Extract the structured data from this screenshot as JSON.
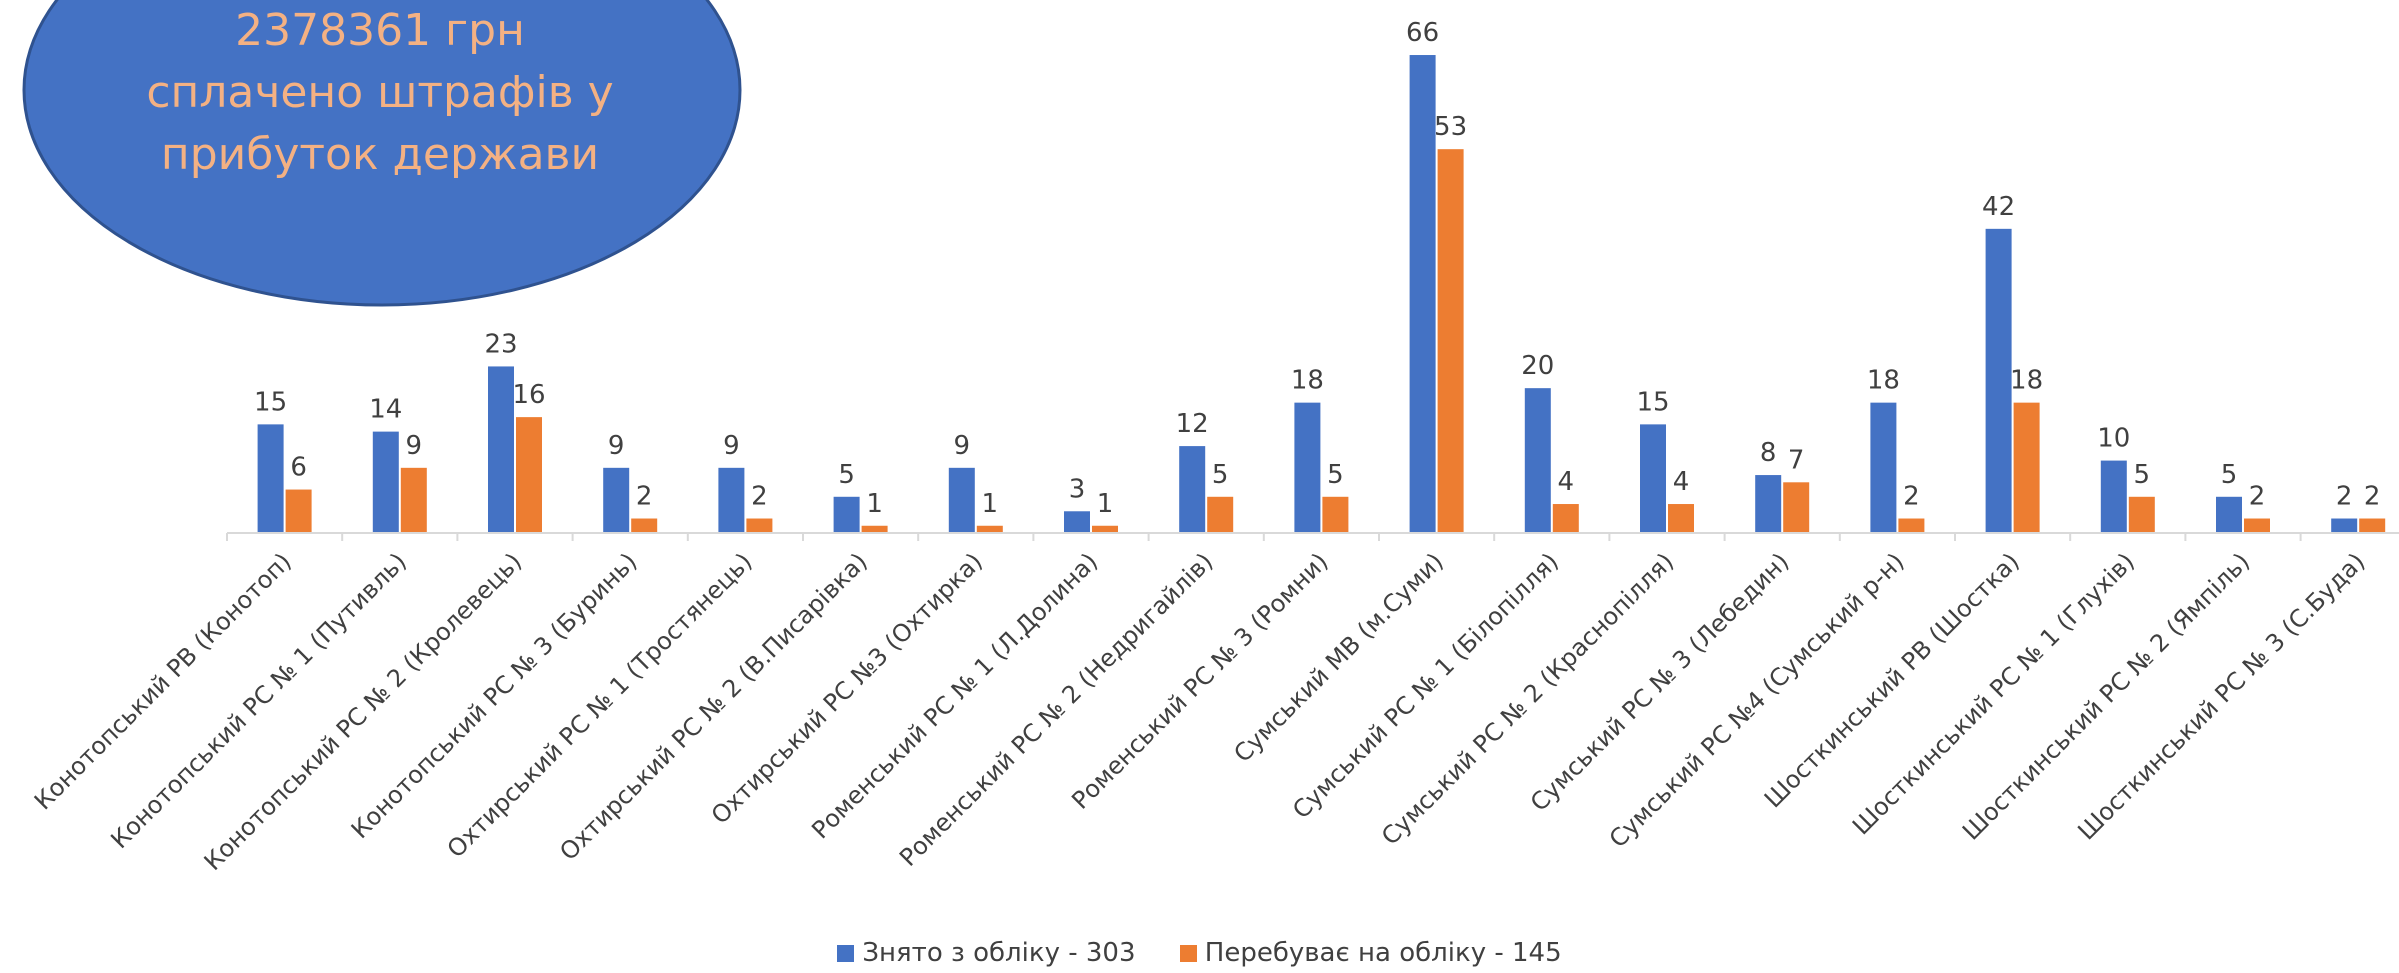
{
  "callout": {
    "line1": "2378361 грн",
    "line2": "сплачено штрафів у",
    "line3": "прибуток держави",
    "fill_color": "#4472C4",
    "text_color": "#F4B183"
  },
  "chart_data": {
    "type": "bar",
    "categories": [
      "Конотопський РВ (Конотоп)",
      "Конотопський РС № 1 (Путивль)",
      "Конотопський РС № 2 (Кролевець)",
      "Конотопський РС № 3 (Буринь)",
      "Охтирський РС № 1 (Тростянець)",
      "Охтирський РС № 2 (В.Писарівка)",
      "Охтирський РС №3 (Охтирка)",
      "Роменський РС № 1 (Л.Долина)",
      "Роменський РС № 2 (Недригайлів)",
      "Роменський РС № 3 (Ромни)",
      "Сумський МВ (м.Суми)",
      "Сумський РС № 1 (Білопілля)",
      "Сумський РС № 2 (Краснопілля)",
      "Сумський РС № 3 (Лебедин)",
      "Сумський РС №4 (Сумський р-н)",
      "Шосткинський РВ (Шостка)",
      "Шосткинський РС № 1 (Глухів)",
      "Шосткинський РС № 2 (Ямпіль)",
      "Шосткинський РС № 3 (С.Буда)"
    ],
    "series": [
      {
        "name": "Знято з обліку - 303",
        "color": "#4472C4",
        "values": [
          15,
          14,
          23,
          9,
          9,
          5,
          9,
          3,
          12,
          18,
          66,
          20,
          15,
          8,
          18,
          42,
          10,
          5,
          2
        ]
      },
      {
        "name": "Перебуває на обліку - 145",
        "color": "#ED7D31",
        "values": [
          6,
          9,
          16,
          2,
          2,
          1,
          1,
          1,
          5,
          5,
          53,
          4,
          4,
          7,
          2,
          18,
          5,
          2,
          2
        ]
      }
    ],
    "ylim": [
      0,
      70
    ],
    "grid": false,
    "legend_position": "bottom"
  }
}
